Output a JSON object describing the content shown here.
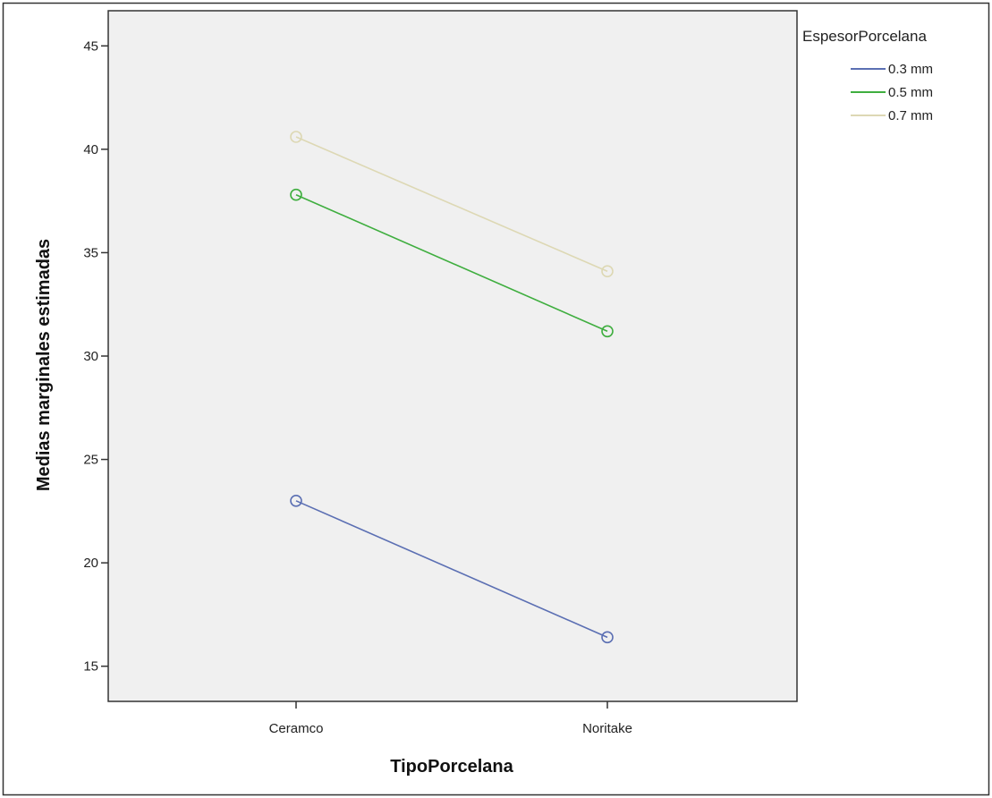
{
  "chart_data": {
    "type": "line",
    "title": "",
    "xlabel": "TipoPorcelana",
    "ylabel": "Medias marginales estimadas",
    "categories": [
      "Ceramco",
      "Noritake"
    ],
    "ylim": [
      13.3,
      46.7
    ],
    "yticks": [
      15,
      20,
      25,
      30,
      35,
      40,
      45
    ],
    "grid": false,
    "legend_title": "EspesorPorcelana",
    "legend_position": "top-right, outside plot",
    "series": [
      {
        "name": "0.3 mm",
        "values": [
          23.0,
          16.4
        ],
        "color": "#5b6fb3"
      },
      {
        "name": "0.5 mm",
        "values": [
          37.8,
          31.2
        ],
        "color": "#3fae3f"
      },
      {
        "name": "0.7 mm",
        "values": [
          40.6,
          34.1
        ],
        "color": "#ddd8b4"
      }
    ],
    "plot_background": "#f0f0f0"
  }
}
